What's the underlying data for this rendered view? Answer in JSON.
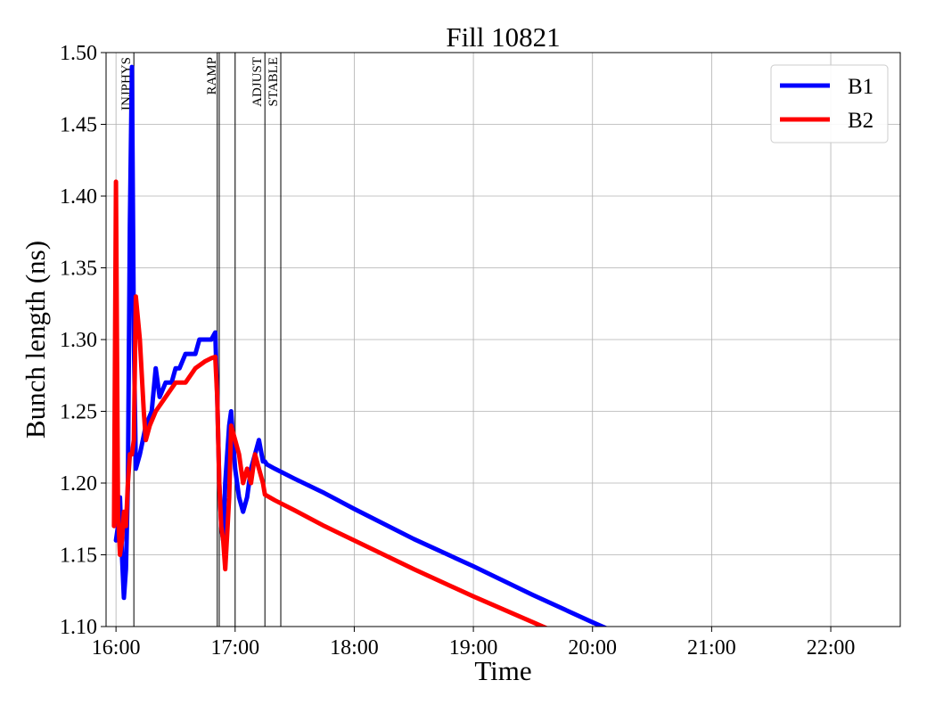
{
  "chart_data": {
    "type": "line",
    "title": "Fill 10821",
    "xlabel": "Time",
    "ylabel": "Bunch length (ns)",
    "xlim": [
      "15:55",
      "22:35"
    ],
    "ylim": [
      1.1,
      1.5
    ],
    "xticks": [
      "16:00",
      "17:00",
      "18:00",
      "19:00",
      "20:00",
      "21:00",
      "22:00"
    ],
    "yticks": [
      "1.10",
      "1.15",
      "1.20",
      "1.25",
      "1.30",
      "1.35",
      "1.40",
      "1.45",
      "1.50"
    ],
    "grid": true,
    "legend": "top-right",
    "mode_markers": [
      {
        "label": "INJPHYS",
        "time": "16:09",
        "labeled": true
      },
      {
        "label": "",
        "time": "16:51",
        "labeled": false
      },
      {
        "label": "RAMP",
        "time": "16:52",
        "labeled": true
      },
      {
        "label": "",
        "time": "17:00",
        "labeled": false
      },
      {
        "label": "ADJUST",
        "time": "17:15",
        "labeled": true
      },
      {
        "label": "STABLE",
        "time": "17:23",
        "labeled": true
      }
    ],
    "series": [
      {
        "name": "B1",
        "color": "#0000ff",
        "x": [
          "16:00",
          "16:01",
          "16:02",
          "16:03",
          "16:04",
          "16:05",
          "16:06",
          "16:07",
          "16:08",
          "16:09",
          "16:10",
          "16:12",
          "16:15",
          "16:18",
          "16:20",
          "16:22",
          "16:25",
          "16:28",
          "16:30",
          "16:32",
          "16:35",
          "16:40",
          "16:42",
          "16:45",
          "16:48",
          "16:50",
          "16:51",
          "16:52",
          "16:53",
          "16:54",
          "16:55",
          "16:57",
          "16:58",
          "17:00",
          "17:02",
          "17:04",
          "17:06",
          "17:08",
          "17:10",
          "17:12",
          "17:14",
          "17:15",
          "17:16",
          "17:20",
          "17:30",
          "17:45",
          "18:00",
          "18:30",
          "19:00",
          "19:30",
          "20:00",
          "20:15"
        ],
        "y": [
          1.16,
          1.17,
          1.19,
          1.15,
          1.12,
          1.14,
          1.2,
          1.38,
          1.49,
          1.3,
          1.21,
          1.22,
          1.24,
          1.25,
          1.28,
          1.26,
          1.27,
          1.27,
          1.28,
          1.28,
          1.29,
          1.29,
          1.3,
          1.3,
          1.3,
          1.305,
          1.26,
          1.2,
          1.17,
          1.16,
          1.2,
          1.24,
          1.25,
          1.21,
          1.19,
          1.18,
          1.19,
          1.21,
          1.22,
          1.23,
          1.215,
          1.215,
          1.213,
          1.21,
          1.203,
          1.193,
          1.182,
          1.161,
          1.142,
          1.122,
          1.103,
          1.094
        ]
      },
      {
        "name": "B2",
        "color": "#ff0000",
        "x": [
          "15:59",
          "16:00",
          "16:01",
          "16:02",
          "16:03",
          "16:04",
          "16:05",
          "16:06",
          "16:07",
          "16:08",
          "16:09",
          "16:10",
          "16:12",
          "16:14",
          "16:15",
          "16:17",
          "16:20",
          "16:25",
          "16:30",
          "16:35",
          "16:40",
          "16:45",
          "16:48",
          "16:50",
          "16:51",
          "16:52",
          "16:53",
          "16:54",
          "16:55",
          "16:57",
          "16:58",
          "17:00",
          "17:02",
          "17:04",
          "17:06",
          "17:08",
          "17:10",
          "17:12",
          "17:14",
          "17:15",
          "17:20",
          "17:30",
          "17:45",
          "18:00",
          "18:30",
          "19:00",
          "19:30",
          "19:45"
        ],
        "y": [
          1.17,
          1.41,
          1.18,
          1.15,
          1.16,
          1.18,
          1.17,
          1.2,
          1.22,
          1.22,
          1.23,
          1.33,
          1.3,
          1.25,
          1.23,
          1.24,
          1.25,
          1.26,
          1.27,
          1.27,
          1.28,
          1.285,
          1.287,
          1.288,
          1.26,
          1.2,
          1.17,
          1.16,
          1.14,
          1.19,
          1.24,
          1.23,
          1.22,
          1.2,
          1.21,
          1.2,
          1.22,
          1.21,
          1.2,
          1.192,
          1.188,
          1.181,
          1.17,
          1.16,
          1.14,
          1.121,
          1.103,
          1.094
        ]
      }
    ]
  }
}
